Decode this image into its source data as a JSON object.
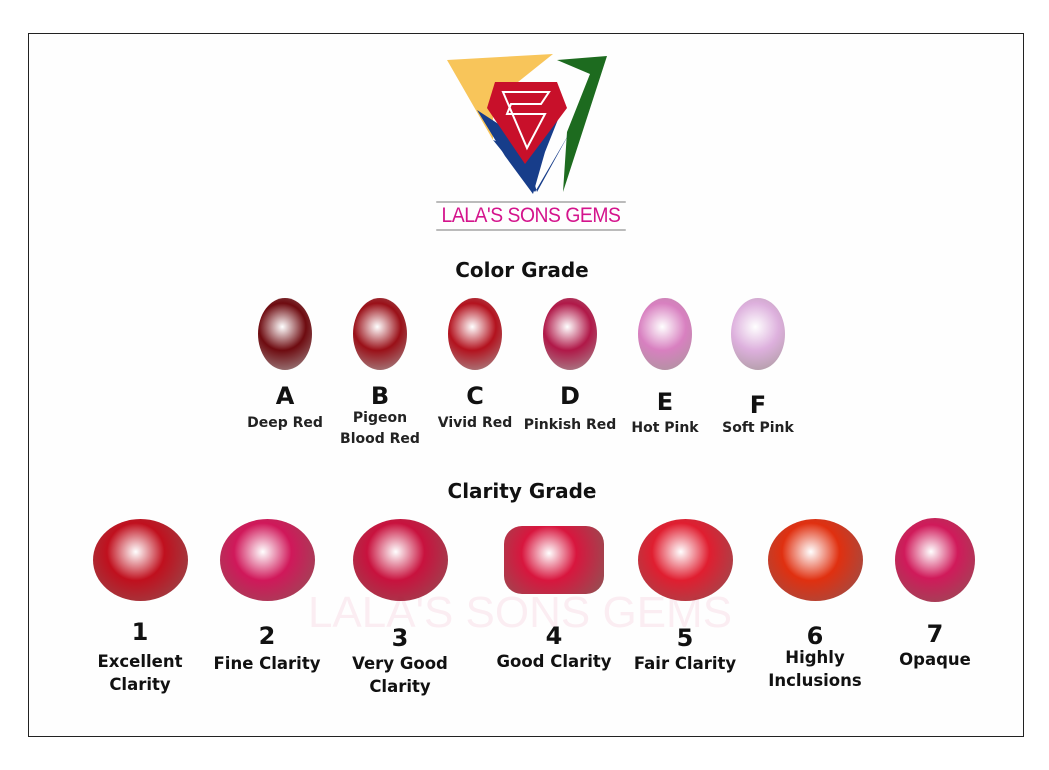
{
  "brand": {
    "name": "LALA'S SONS GEMS",
    "logo_colors": [
      "#f8c55a",
      "#1d6b1f",
      "#173d8a",
      "#d0102a"
    ],
    "brand_color": "#d4148c"
  },
  "color_grade": {
    "title": "Color Grade",
    "items": [
      {
        "letter": "A",
        "label": "Deep Red",
        "color": "#6e0b10"
      },
      {
        "letter": "B",
        "label": "Pigeon Blood Red",
        "color": "#9a1018"
      },
      {
        "letter": "C",
        "label": "Vivid Red",
        "color": "#b3121e"
      },
      {
        "letter": "D",
        "label": "Pinkish Red",
        "color": "#b01848"
      },
      {
        "letter": "E",
        "label": "Hot Pink",
        "color": "#d880c0"
      },
      {
        "letter": "F",
        "label": "Soft Pink",
        "color": "#ddb0dd"
      }
    ]
  },
  "clarity_grade": {
    "title": "Clarity Grade",
    "items": [
      {
        "number": "1",
        "label": "Excellent Clarity",
        "color": "#c0101e"
      },
      {
        "number": "2",
        "label": "Fine Clarity",
        "color": "#d0185a"
      },
      {
        "number": "3",
        "label": "Very Good Clarity",
        "color": "#c8123e"
      },
      {
        "number": "4",
        "label": "Good Clarity",
        "color": "#d8163e"
      },
      {
        "number": "5",
        "label": "Fair Clarity",
        "color": "#e01e30"
      },
      {
        "number": "6",
        "label": "Highly Inclusions",
        "color": "#e03010"
      },
      {
        "number": "7",
        "label": "Opaque",
        "color": "#d01a5a"
      }
    ]
  },
  "watermark": "LALA'S SONS GEMS"
}
